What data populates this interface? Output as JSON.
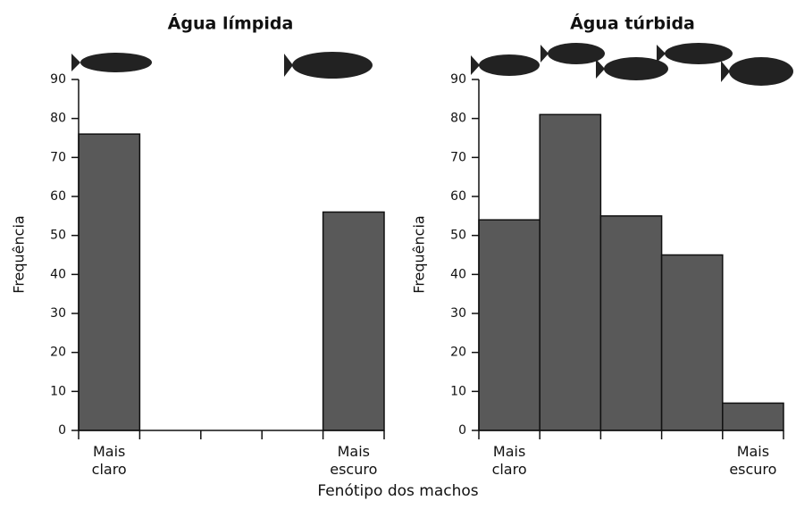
{
  "xlabel": "Fenótipo dos machos",
  "chart_data": [
    {
      "type": "bar",
      "title": "Água límpida",
      "ylabel": "Frequência",
      "categories": [
        "Mais claro",
        null,
        null,
        null,
        "Mais escuro"
      ],
      "values": [
        76,
        0,
        0,
        0,
        56
      ],
      "color": "#595959",
      "ylim": [
        0,
        90
      ],
      "yticks": [
        0,
        10,
        20,
        30,
        40,
        50,
        60,
        70,
        80,
        90
      ]
    },
    {
      "type": "bar",
      "title": "Água túrbida",
      "ylabel": "Frequência",
      "categories": [
        "Mais claro",
        null,
        null,
        null,
        "Mais escuro"
      ],
      "values": [
        54,
        81,
        55,
        45,
        7
      ],
      "color": "#595959",
      "ylim": [
        0,
        90
      ],
      "yticks": [
        0,
        10,
        20,
        30,
        40,
        50,
        60,
        70,
        80,
        90
      ]
    }
  ]
}
